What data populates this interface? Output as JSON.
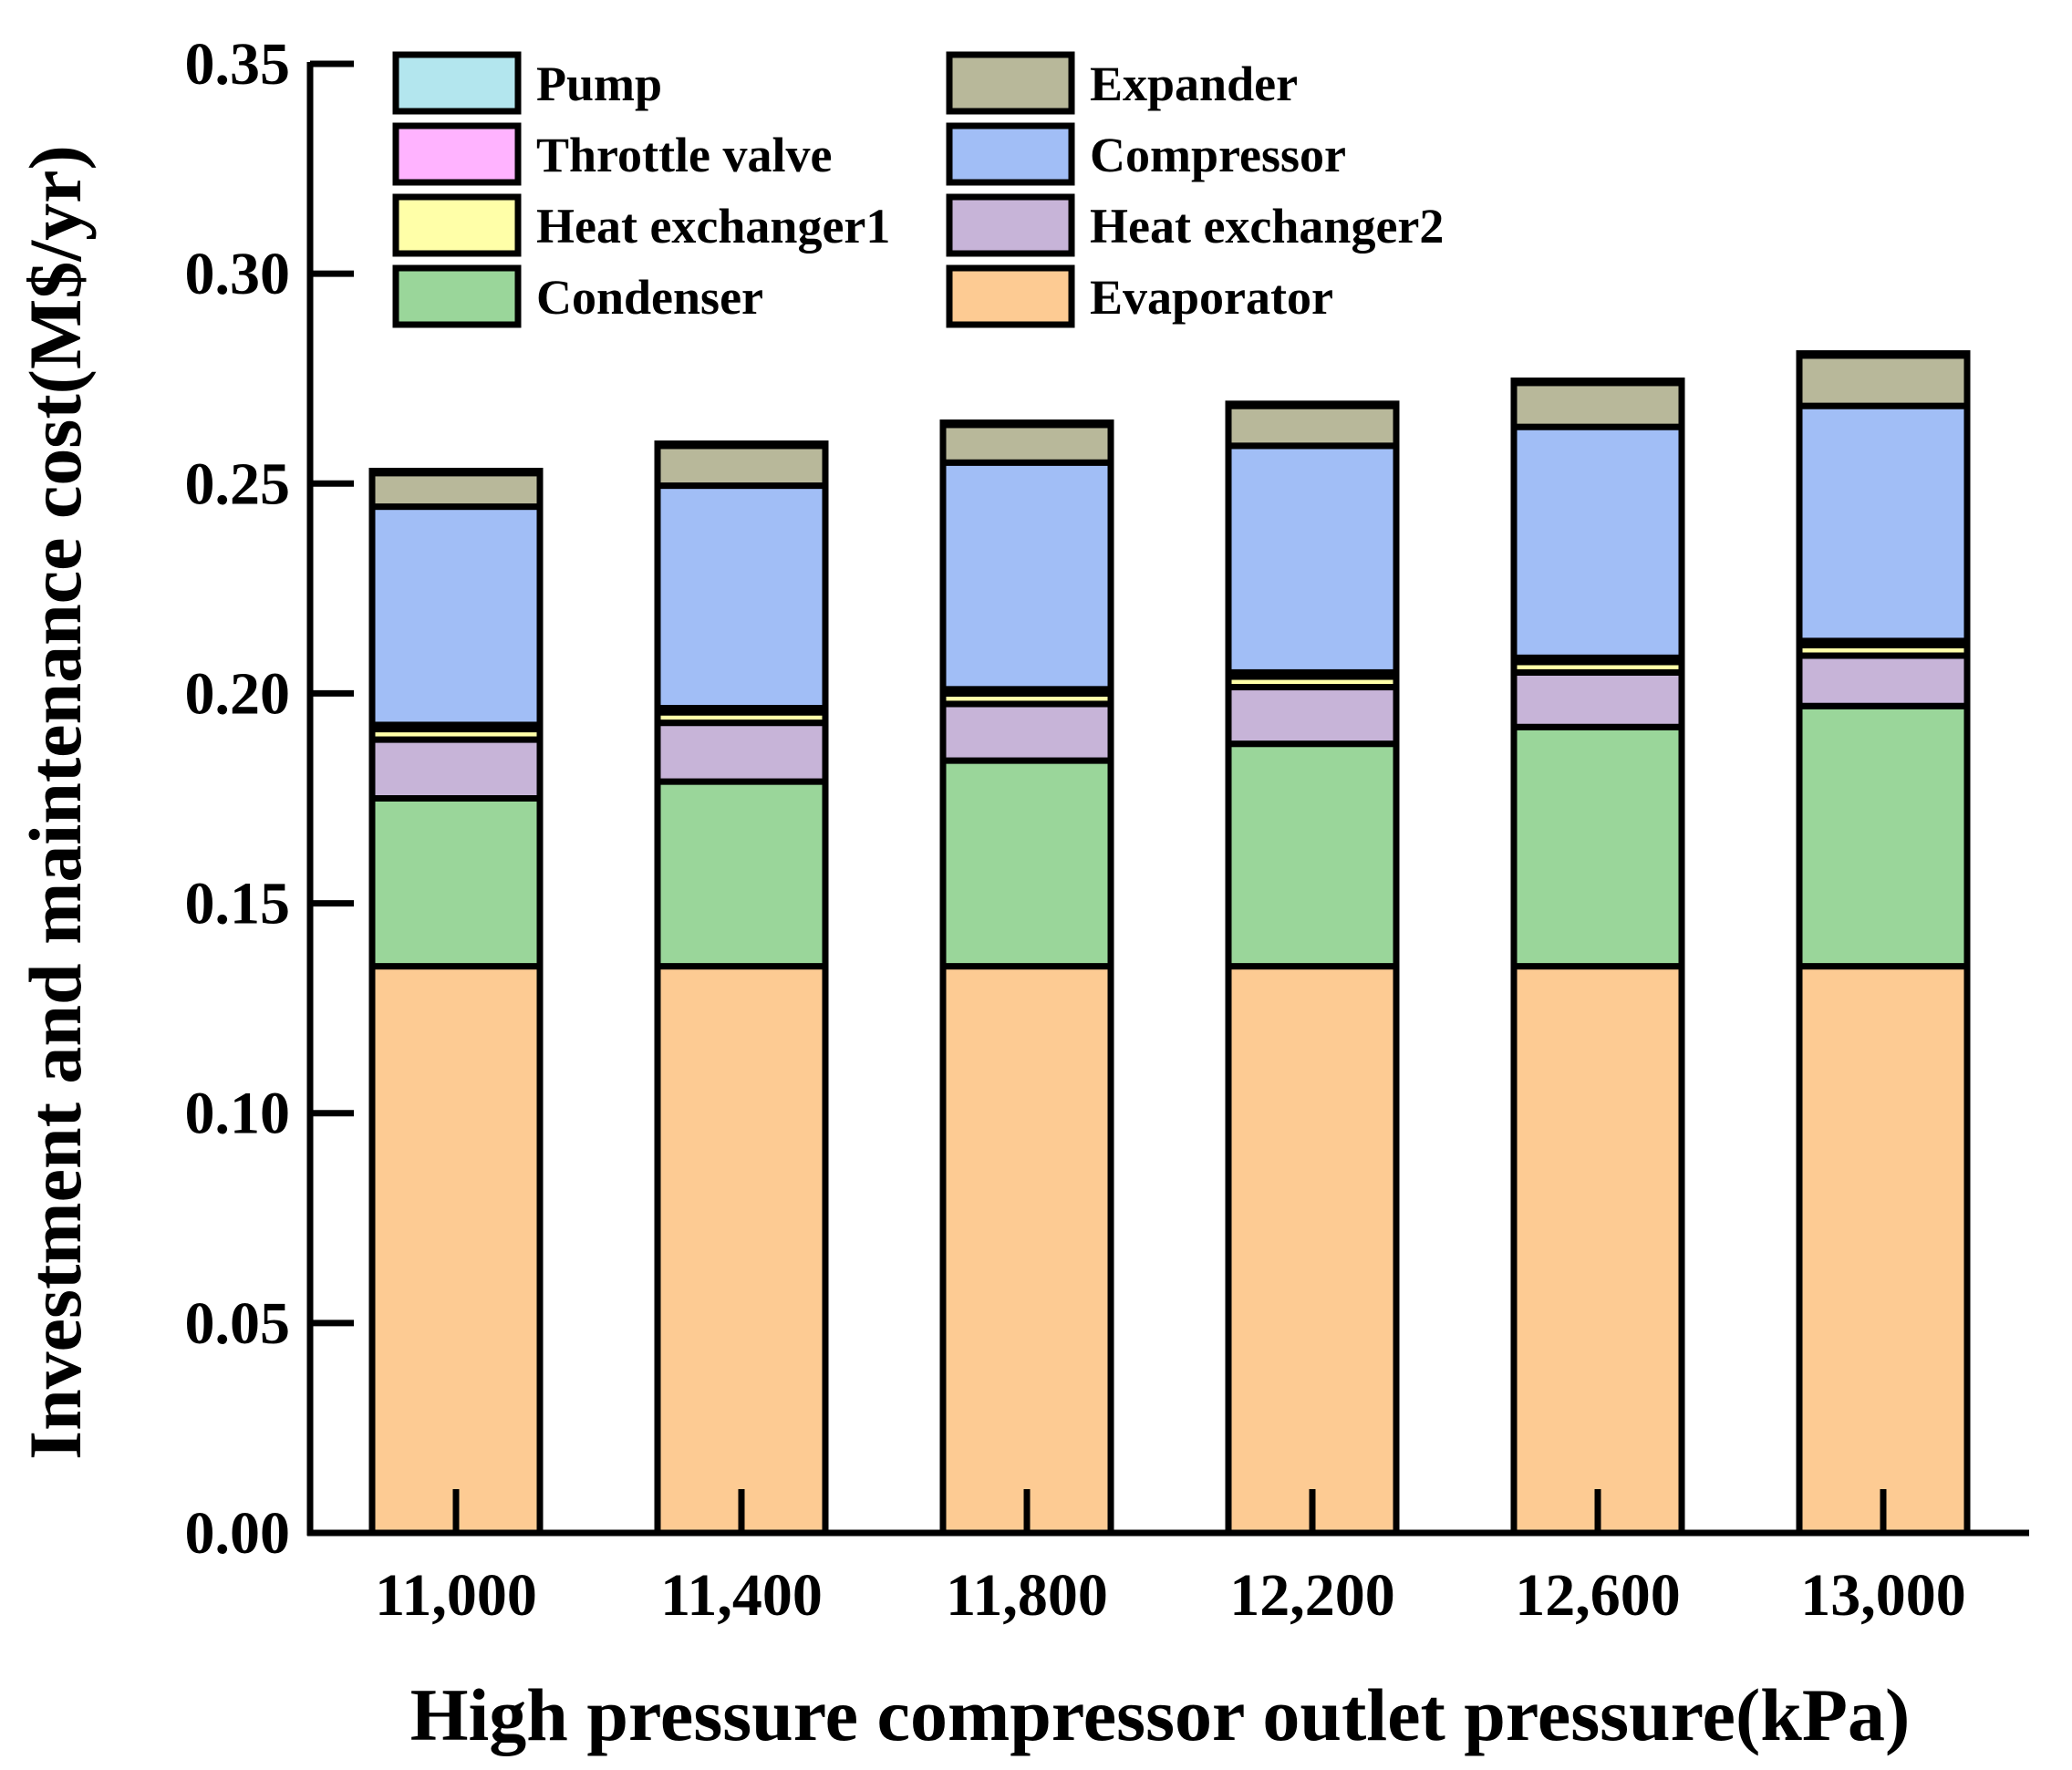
{
  "chart_data": {
    "type": "bar",
    "stacked": true,
    "title": "",
    "xlabel": "High pressure compressor outlet pressure(kPa)",
    "ylabel": "Investment and maintenance cost(M$/yr)",
    "ylim": [
      0,
      0.35
    ],
    "yticks": [
      "0.00",
      "0.05",
      "0.10",
      "0.15",
      "0.20",
      "0.25",
      "0.30",
      "0.35"
    ],
    "categories": [
      "11,000",
      "11,400",
      "11,800",
      "12,200",
      "12,600",
      "13,000"
    ],
    "legend_position": "top-left",
    "series": [
      {
        "name": "Evaporator",
        "color": "#FDCB93",
        "values": [
          0.135,
          0.135,
          0.135,
          0.135,
          0.135,
          0.135
        ]
      },
      {
        "name": "Condenser",
        "color": "#9AD69A",
        "values": [
          0.04,
          0.044,
          0.049,
          0.053,
          0.057,
          0.062
        ]
      },
      {
        "name": "Heat exchanger2",
        "color": "#C7B4D8",
        "values": [
          0.014,
          0.014,
          0.0135,
          0.0135,
          0.013,
          0.012
        ]
      },
      {
        "name": "Heat exchanger1",
        "color": "#FFFFA8",
        "values": [
          0.0025,
          0.0025,
          0.0025,
          0.0025,
          0.0025,
          0.0025
        ]
      },
      {
        "name": "Throttle valve",
        "color": "#FFB3FF",
        "values": [
          0.001,
          0.001,
          0.001,
          0.001,
          0.001,
          0.001
        ]
      },
      {
        "name": "Compressor",
        "color": "#A1BEF6",
        "values": [
          0.052,
          0.053,
          0.054,
          0.054,
          0.055,
          0.056
        ]
      },
      {
        "name": "Expander",
        "color": "#B8B89A",
        "values": [
          0.008,
          0.0095,
          0.009,
          0.0095,
          0.0105,
          0.012
        ]
      },
      {
        "name": "Pump",
        "color": "#B3E6EE",
        "values": [
          0.0005,
          0.0005,
          0.0005,
          0.0005,
          0.0005,
          0.0005
        ]
      }
    ],
    "legend_order": [
      "Pump",
      "Expander",
      "Throttle valve",
      "Compressor",
      "Heat exchanger1",
      "Heat exchanger2",
      "Condenser",
      "Evaporator"
    ]
  }
}
